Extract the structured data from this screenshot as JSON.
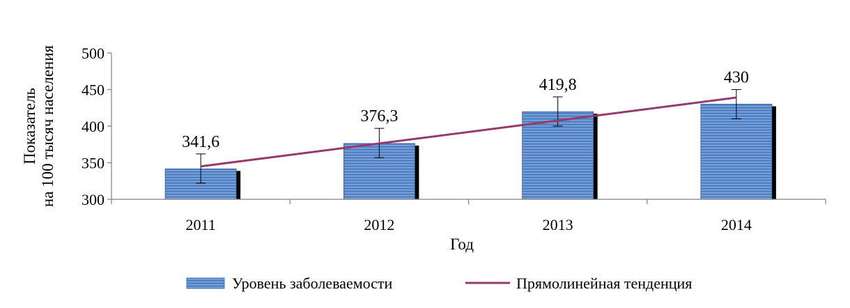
{
  "chart_data": {
    "type": "bar",
    "categories": [
      "2011",
      "2012",
      "2013",
      "2014"
    ],
    "series": [
      {
        "name": "Уровень заболеваемости",
        "values": [
          341.6,
          376.3,
          419.8,
          430
        ],
        "data_labels": [
          "341,6",
          "376,3",
          "419,8",
          "430"
        ],
        "error_low": [
          322,
          357,
          400,
          410
        ],
        "error_high": [
          362,
          397,
          440,
          450
        ]
      }
    ],
    "trend": {
      "name": "Прямолинейная тенденция",
      "start": 345,
      "end": 439
    },
    "xlabel": "Год",
    "ylabel_lines": [
      "Показатель",
      "на 100 тысяч населения"
    ],
    "ylim": [
      300,
      500
    ],
    "yticks": [
      300,
      350,
      400,
      450,
      500
    ],
    "ytick_labels": [
      "300",
      "350",
      "400",
      "450",
      "500"
    ],
    "legend_position": "bottom",
    "grid": false,
    "colors": {
      "bar": "#4f81c7",
      "bar_stripe": "#ffffff",
      "bar_shadow": "#000000",
      "trend": "#953a6a",
      "error": "#000000",
      "axis": "#808080"
    }
  }
}
